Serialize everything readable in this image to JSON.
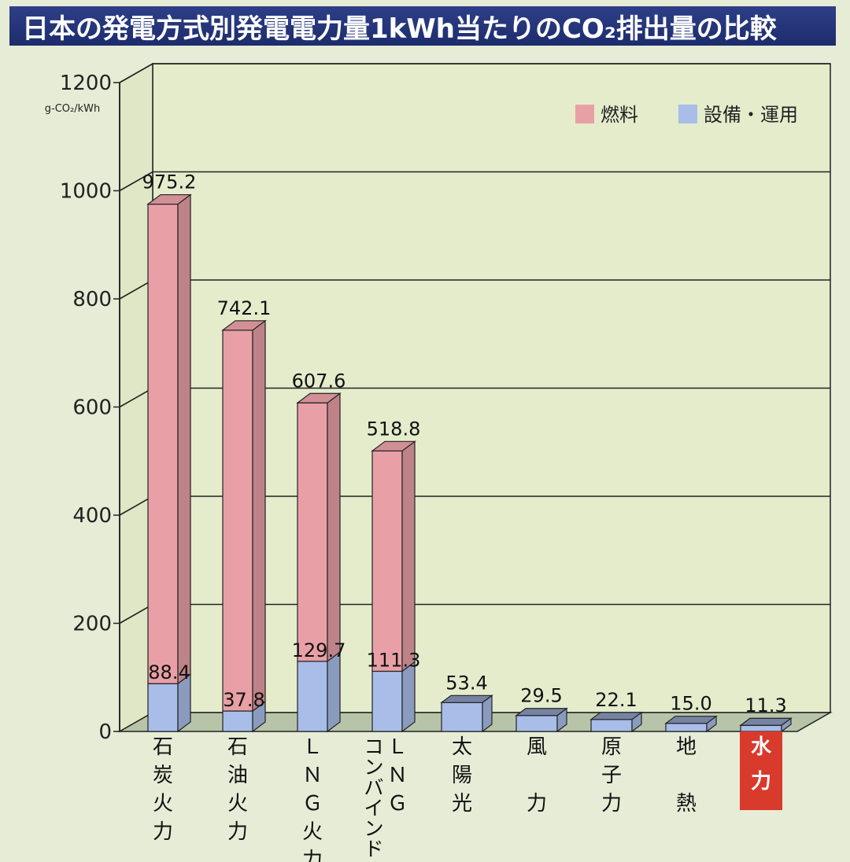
{
  "chart_data": {
    "type": "bar",
    "stacked": true,
    "title": "日本の発電方式別発電電力量1kWh当たりのCO₂排出量の比較",
    "ylabel": "g-CO₂/kWh",
    "ylim": [
      0,
      1200
    ],
    "yticks": [
      0,
      200,
      400,
      600,
      800,
      1000,
      1200
    ],
    "grid": true,
    "legend_position": "top-right",
    "categories": [
      "石炭火力",
      "石油火力",
      "ＬＮＧ火力",
      "ＬＮＧコンバインド",
      "太陽光",
      "風力",
      "原子力",
      "地熱",
      "水力"
    ],
    "category_labels": [
      [
        "石",
        "炭",
        "火",
        "力"
      ],
      [
        "石",
        "油",
        "火",
        "力"
      ],
      [
        "Ｌ",
        "Ｎ",
        "Ｇ",
        "火",
        "力"
      ],
      [
        "Ｌ",
        "Ｎ",
        "Ｇ"
      ],
      [
        "太",
        "陽",
        "光"
      ],
      [
        "風",
        "",
        "力"
      ],
      [
        "原",
        "子",
        "力"
      ],
      [
        "地",
        "",
        "熱"
      ],
      [
        "水",
        "力"
      ]
    ],
    "category_labels_col2": [
      "",
      "",
      "",
      "コンバインド",
      "",
      "",
      "",
      "",
      ""
    ],
    "highlight_category": "水力",
    "highlight_color": "#d83a2c",
    "totals": [
      975.2,
      742.1,
      607.6,
      518.8,
      53.4,
      29.5,
      22.1,
      15.0,
      11.3
    ],
    "series": [
      {
        "name": "燃料",
        "color": "#e8a0a6",
        "values": [
          886.8,
          704.3,
          477.9,
          407.5,
          0,
          0,
          0,
          0,
          0
        ]
      },
      {
        "name": "設備・運用",
        "color": "#a8bde8",
        "values": [
          88.4,
          37.8,
          129.7,
          111.3,
          53.4,
          29.5,
          22.1,
          15.0,
          11.3
        ]
      }
    ],
    "data_labels": {
      "totals": [
        "975.2",
        "742.1",
        "607.6",
        "518.8",
        "53.4",
        "29.5",
        "22.1",
        "15.0",
        "11.3"
      ],
      "equipment": [
        "88.4",
        "37.8",
        "129.7",
        "111.3",
        "",
        "",
        "",
        "",
        ""
      ]
    }
  }
}
